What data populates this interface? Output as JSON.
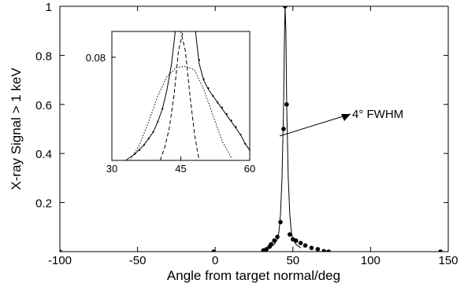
{
  "chart_data": [
    {
      "id": "main",
      "type": "scatter",
      "title": "",
      "xlabel": "Angle from target normal/deg",
      "ylabel": "X-ray Signal > 1 keV",
      "xlim": [
        -100,
        150
      ],
      "ylim": [
        0,
        1
      ],
      "xticks": [
        "-100",
        "-50",
        "0",
        "50",
        "100",
        "150"
      ],
      "yticks": [
        "0.2",
        "0.4",
        "0.6",
        "0.8",
        "1"
      ],
      "grid": false,
      "series": [
        {
          "style": "markers",
          "x": [
            -100,
            -1,
            31,
            33,
            35,
            36,
            38,
            40,
            42,
            44,
            45,
            46,
            48,
            50,
            52,
            55,
            58,
            62,
            66,
            70,
            73,
            145
          ],
          "y": [
            0.0,
            0.0,
            0.005,
            0.01,
            0.02,
            0.03,
            0.045,
            0.06,
            0.12,
            0.5,
            1.0,
            0.6,
            0.07,
            0.05,
            0.045,
            0.035,
            0.025,
            0.015,
            0.01,
            0.002,
            0.0,
            0.0
          ]
        },
        {
          "style": "solid-line",
          "x": [
            35,
            38,
            40,
            41,
            42,
            43,
            44,
            44.5,
            45,
            45.5,
            46,
            47,
            48,
            49,
            50,
            52,
            55
          ],
          "y": [
            0.015,
            0.03,
            0.05,
            0.08,
            0.15,
            0.3,
            0.6,
            0.85,
            1.0,
            0.9,
            0.6,
            0.3,
            0.15,
            0.08,
            0.05,
            0.03,
            0.015
          ]
        }
      ],
      "annotations": [
        {
          "text": "4° FWHM",
          "x": 70,
          "y": 0.65,
          "arrow_to": {
            "x": 47,
            "y": 0.47
          }
        }
      ]
    },
    {
      "id": "inset",
      "type": "line",
      "title": "",
      "xlabel": "",
      "ylabel": "",
      "xlim": [
        30,
        60
      ],
      "ylim": [
        0,
        0.1
      ],
      "xticks": [
        "30",
        "45",
        "60"
      ],
      "yticks": [
        "0.08"
      ],
      "grid": false,
      "series": [
        {
          "style": "solid-line",
          "x": [
            33,
            35,
            37,
            39,
            40,
            41,
            42,
            43,
            43.8
          ],
          "y": [
            0.0,
            0.005,
            0.012,
            0.022,
            0.03,
            0.04,
            0.055,
            0.075,
            0.1
          ]
        },
        {
          "style": "solid-line",
          "x": [
            48.2,
            49,
            50,
            51,
            52,
            53,
            54,
            55,
            56,
            57,
            58,
            59,
            60
          ],
          "y": [
            0.1,
            0.075,
            0.062,
            0.055,
            0.05,
            0.045,
            0.04,
            0.035,
            0.03,
            0.025,
            0.02,
            0.013,
            0.008
          ]
        },
        {
          "style": "dashed-line",
          "x": [
            40.5,
            41.5,
            42.5,
            43.5,
            44.5,
            45.5,
            46.5,
            47.2
          ],
          "y": [
            0.0,
            0.01,
            0.025,
            0.05,
            0.085,
            0.1,
            0.1,
            0.1
          ]
        },
        {
          "style": "dashed-line",
          "x": [
            43.2,
            44,
            45,
            46,
            47,
            48,
            49
          ],
          "y": [
            0.1,
            0.1,
            0.1,
            0.085,
            0.05,
            0.02,
            0.0
          ]
        },
        {
          "style": "dotted-line",
          "x": [
            34,
            36,
            38,
            40,
            42,
            44,
            46,
            48,
            50,
            52,
            54,
            56
          ],
          "y": [
            0.0,
            0.012,
            0.03,
            0.05,
            0.065,
            0.072,
            0.073,
            0.07,
            0.055,
            0.035,
            0.015,
            0.002
          ]
        },
        {
          "style": "markers",
          "x": [
            35,
            36,
            37,
            38,
            39,
            40,
            41,
            49,
            50,
            51,
            52,
            53,
            54,
            55,
            56,
            57,
            58,
            59,
            60
          ],
          "y": [
            0.005,
            0.008,
            0.012,
            0.017,
            0.022,
            0.03,
            0.04,
            0.078,
            0.063,
            0.056,
            0.05,
            0.045,
            0.041,
            0.036,
            0.031,
            0.026,
            0.02,
            0.013,
            0.008
          ]
        }
      ]
    }
  ]
}
